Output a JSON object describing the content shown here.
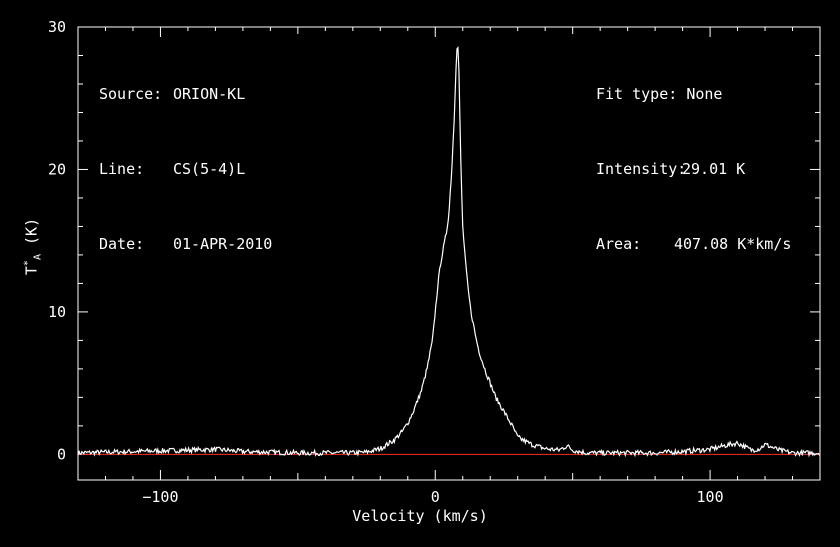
{
  "chart_data": {
    "type": "line",
    "xlabel": "Velocity (km/s)",
    "ylabel_main": "T",
    "ylabel_sup": "*",
    "ylabel_sub": "A",
    "ylabel_unit": " (K)",
    "xlim": [
      -130,
      140
    ],
    "ylim": [
      -1.8,
      30
    ],
    "xticks": [
      -100,
      0,
      100
    ],
    "xtick_labels": [
      "−100",
      "0",
      "100"
    ],
    "yticks": [
      0,
      10,
      20,
      30
    ],
    "ytick_labels": [
      "0",
      "10",
      "20",
      "30"
    ],
    "grid": false,
    "series": [
      {
        "color": "#ffffff",
        "x": [
          -130,
          -120,
          -110,
          -100,
          -90,
          -80,
          -70,
          -60,
          -50,
          -40,
          -30,
          -25,
          -20,
          -15,
          -12,
          -10,
          -8,
          -5,
          -3,
          -1,
          0,
          1,
          2,
          3,
          4,
          5,
          6,
          7,
          7.5,
          8,
          8.5,
          9,
          9.5,
          10,
          11,
          12,
          13,
          14,
          15,
          16,
          18,
          20,
          22,
          25,
          28,
          30,
          35,
          40,
          45,
          48,
          50,
          55,
          60,
          70,
          80,
          90,
          100,
          105,
          110,
          115,
          118,
          120,
          125,
          130,
          140
        ],
        "y": [
          0.1,
          0.15,
          0.2,
          0.25,
          0.3,
          0.35,
          0.2,
          0.15,
          0.1,
          0.1,
          0.1,
          0.15,
          0.4,
          1.0,
          1.6,
          2.2,
          3.0,
          4.5,
          6.0,
          8.0,
          10.0,
          12.0,
          13.5,
          14.5,
          15.5,
          17.0,
          20.0,
          24.0,
          27.0,
          29.01,
          28.0,
          23.0,
          19.0,
          16.0,
          13.5,
          11.5,
          10.0,
          9.0,
          8.0,
          7.2,
          6.0,
          5.0,
          4.0,
          3.0,
          2.0,
          1.2,
          0.7,
          0.4,
          0.3,
          0.6,
          0.3,
          0.1,
          0.1,
          0.1,
          0.1,
          0.2,
          0.35,
          0.6,
          0.8,
          0.3,
          0.4,
          0.7,
          0.3,
          0.1,
          0.1
        ]
      }
    ],
    "baseline": {
      "y": 0,
      "color": "#ff2a2a"
    }
  },
  "info": {
    "source_key": "Source:",
    "source_val": "ORION-KL",
    "line_key": "Line:",
    "line_val": "CS(5-4)L",
    "date_key": "Date:",
    "date_val": "01-APR-2010",
    "fit_key": "Fit type:",
    "fit_val": "None",
    "intensity_key": "Intensity:",
    "intensity_val": "29.01 K",
    "area_key": "Area:",
    "area_val": "407.08 K*km/s"
  }
}
